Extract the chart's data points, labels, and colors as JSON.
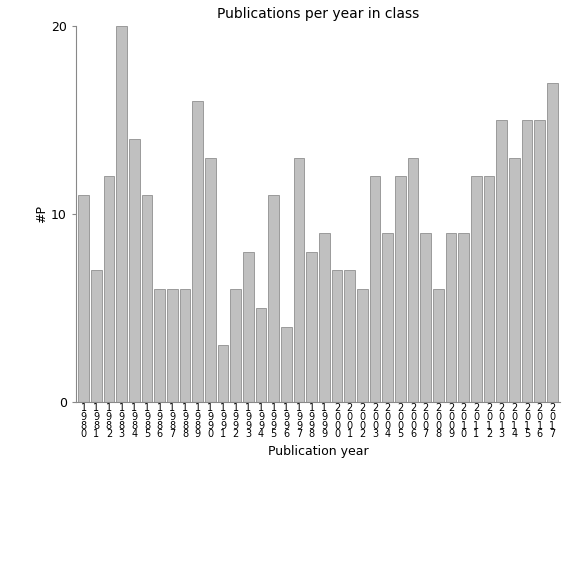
{
  "year_labels": [
    "1980",
    "1981",
    "1982",
    "1983",
    "1984",
    "1985",
    "1986",
    "1987",
    "1988",
    "1989",
    "1990",
    "1991",
    "1992",
    "1993",
    "1994",
    "1995",
    "1996",
    "1997",
    "1998",
    "1999",
    "2000",
    "2001",
    "2002",
    "2003",
    "2004",
    "2005",
    "2006",
    "2007",
    "2008",
    "2009",
    "2010",
    "2011",
    "2012",
    "2013",
    "2014",
    "2015",
    "2016",
    "2017"
  ],
  "values": [
    11,
    7,
    12,
    20,
    14,
    11,
    6,
    6,
    6,
    16,
    13,
    3,
    6,
    8,
    5,
    11,
    4,
    13,
    8,
    9,
    7,
    7,
    6,
    12,
    9,
    12,
    13,
    9,
    6,
    9,
    9,
    12,
    12,
    15,
    13,
    15,
    15,
    17
  ],
  "title": "Publications per year in class",
  "ylabel": "#P",
  "xlabel": "Publication year",
  "bar_color": "#c0c0c0",
  "bar_edge_color": "#808080",
  "ylim": [
    0,
    20
  ],
  "yticks": [
    0,
    10,
    20
  ],
  "bg_color": "#ffffff"
}
